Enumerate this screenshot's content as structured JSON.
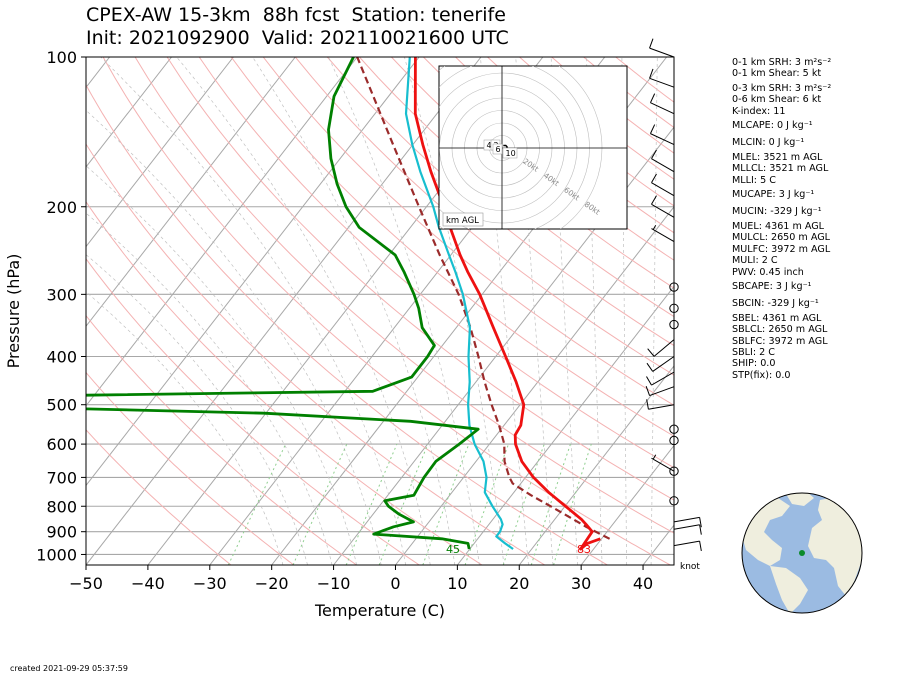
{
  "title_line1": "CPEX-AW 15-3km  88h fcst  Station: tenerife",
  "title_line2": "Init: 2021092900  Valid: 202110021600 UTC",
  "footer": "created 2021-09-29 05:37:59",
  "stats": [
    "0-1 km SRH: 3 m²s⁻²",
    "0-1 km Shear: 5 kt",
    "0-3 km SRH: 3 m²s⁻²",
    "0-6 km Shear: 6 kt",
    "K-index: 11",
    "MLCAPE: 0 J kg⁻¹",
    "MLCIN: 0 J kg⁻¹",
    "MLEL: 3521 m AGL",
    "MLLCL: 3521 m AGL",
    "MLLI: 5 C",
    "MUCAPE: 3 J kg⁻¹",
    "MUCIN: -329 J kg⁻¹",
    "MUEL: 4361 m AGL",
    "MULCL: 2650 m AGL",
    "MULFC: 3972 m AGL",
    "MULI: 2 C",
    "PWV: 0.45 inch",
    "SBCAPE: 3 J kg⁻¹",
    "SBCIN: -329 J kg⁻¹",
    "SBEL: 4361 m AGL",
    "SBLCL: 2650 m AGL",
    "SBLFC: 3972 m AGL",
    "SBLI: 2 C",
    "SHIP: 0.0",
    "STP(fix): 0.0"
  ],
  "hodograph": {
    "ring_labels": [
      "20kt",
      "40kt",
      "60kt",
      "80kt"
    ],
    "height_labels": [
      "4",
      "2",
      "6",
      "10"
    ],
    "units_label": "km AGL"
  },
  "barb_units": "knot",
  "colors": {
    "temperature": "#ee1111",
    "dewpoint": "#008000",
    "wetbulb": "#17becf",
    "parcel": "#9b2b2b",
    "isotherm": "#a8a8a8",
    "isobar": "#a8a8a8",
    "dry_adiabat": "#f4b2b2",
    "moist_adiabat": "#c0c0c0",
    "mixing_ratio": "#8fcf8f",
    "globe_ocean": "#9bbbe2",
    "globe_land": "#efeede",
    "station_marker": "#0a8a2a"
  },
  "chart_data": {
    "type": "skew-t",
    "xlabel": "Temperature (C)",
    "ylabel": "Pressure (hPa)",
    "xlim": [
      -50,
      45
    ],
    "ylim": [
      1050,
      100
    ],
    "y_log_scale": true,
    "xticks": [
      -50,
      -40,
      -30,
      -20,
      -10,
      0,
      10,
      20,
      30,
      40
    ],
    "yticks": [
      100,
      200,
      300,
      400,
      500,
      600,
      700,
      800,
      900,
      1000
    ],
    "surface_temperature_label": "83",
    "surface_dewpoint_label": "45",
    "temperature": [
      [
        930,
        29.8
      ],
      [
        950,
        28.3
      ],
      [
        975,
        27.9
      ],
      [
        900,
        27.6
      ],
      [
        870,
        25.7
      ],
      [
        850,
        24.3
      ],
      [
        800,
        20.1
      ],
      [
        750,
        15.6
      ],
      [
        700,
        11.3
      ],
      [
        650,
        7.4
      ],
      [
        600,
        4.2
      ],
      [
        575,
        3.0
      ],
      [
        550,
        2.7
      ],
      [
        500,
        0.6
      ],
      [
        450,
        -3.5
      ],
      [
        400,
        -8.4
      ],
      [
        350,
        -14.0
      ],
      [
        300,
        -20.4
      ],
      [
        270,
        -25.2
      ],
      [
        250,
        -28.5
      ],
      [
        220,
        -33.6
      ],
      [
        200,
        -37.2
      ],
      [
        170,
        -43.7
      ],
      [
        150,
        -48.4
      ],
      [
        130,
        -53.5
      ],
      [
        100,
        -60.6
      ]
    ],
    "dewpoint": [
      [
        975,
        9.9
      ],
      [
        950,
        9.0
      ],
      [
        930,
        4.2
      ],
      [
        910,
        -7.4
      ],
      [
        880,
        -5.1
      ],
      [
        860,
        -2.5
      ],
      [
        830,
        -5.8
      ],
      [
        800,
        -8.5
      ],
      [
        780,
        -9.8
      ],
      [
        760,
        -5.8
      ],
      [
        700,
        -6.4
      ],
      [
        650,
        -6.5
      ],
      [
        600,
        -4.9
      ],
      [
        560,
        -3.7
      ],
      [
        540,
        -15.6
      ],
      [
        520,
        -40.3
      ],
      [
        506,
        -80.0
      ],
      [
        480,
        -80.0
      ],
      [
        470,
        -25.5
      ],
      [
        440,
        -21.0
      ],
      [
        400,
        -21.0
      ],
      [
        380,
        -21.3
      ],
      [
        350,
        -25.5
      ],
      [
        320,
        -28.5
      ],
      [
        300,
        -31.0
      ],
      [
        270,
        -35.5
      ],
      [
        250,
        -39.0
      ],
      [
        220,
        -48.3
      ],
      [
        200,
        -53.0
      ],
      [
        180,
        -57.3
      ],
      [
        160,
        -61.5
      ],
      [
        140,
        -65.5
      ],
      [
        120,
        -68.8
      ],
      [
        100,
        -70.6
      ]
    ],
    "wetbulb": [
      [
        975,
        17.0
      ],
      [
        950,
        15.0
      ],
      [
        920,
        12.7
      ],
      [
        900,
        12.7
      ],
      [
        870,
        12.2
      ],
      [
        850,
        11.3
      ],
      [
        800,
        8.3
      ],
      [
        750,
        5.3
      ],
      [
        700,
        3.7
      ],
      [
        650,
        1.2
      ],
      [
        600,
        -2.4
      ],
      [
        550,
        -5.6
      ],
      [
        500,
        -8.4
      ],
      [
        450,
        -11.0
      ],
      [
        400,
        -14.4
      ],
      [
        350,
        -17.8
      ],
      [
        300,
        -23.1
      ],
      [
        270,
        -27.2
      ],
      [
        250,
        -30.3
      ],
      [
        220,
        -35.4
      ],
      [
        200,
        -38.9
      ],
      [
        170,
        -45.4
      ],
      [
        150,
        -50.1
      ],
      [
        130,
        -55.0
      ],
      [
        100,
        -61.5
      ]
    ],
    "parcel": [
      [
        930,
        31.3
      ],
      [
        880,
        26.0
      ],
      [
        850,
        23.0
      ],
      [
        800,
        17.7
      ],
      [
        760,
        13.1
      ],
      [
        720,
        8.7
      ],
      [
        700,
        7.4
      ],
      [
        650,
        4.6
      ],
      [
        600,
        2.4
      ],
      [
        550,
        -0.8
      ],
      [
        500,
        -4.6
      ],
      [
        450,
        -8.6
      ],
      [
        400,
        -12.8
      ],
      [
        350,
        -17.7
      ],
      [
        300,
        -23.8
      ],
      [
        250,
        -31.8
      ],
      [
        200,
        -41.2
      ],
      [
        150,
        -53.2
      ],
      [
        100,
        -70.0
      ]
    ],
    "wind_barbs": [
      {
        "p": 100,
        "dir": 290,
        "spd": 10
      },
      {
        "p": 115,
        "dir": 290,
        "spd": 10
      },
      {
        "p": 130,
        "dir": 295,
        "spd": 10
      },
      {
        "p": 150,
        "dir": 295,
        "spd": 10
      },
      {
        "p": 170,
        "dir": 300,
        "spd": 10
      },
      {
        "p": 190,
        "dir": 300,
        "spd": 10
      },
      {
        "p": 210,
        "dir": 300,
        "spd": 10
      },
      {
        "p": 235,
        "dir": 300,
        "spd": 5
      },
      {
        "p": 290,
        "dir": 0,
        "spd": 0
      },
      {
        "p": 320,
        "dir": 0,
        "spd": 0
      },
      {
        "p": 345,
        "dir": 0,
        "spd": 0
      },
      {
        "p": 370,
        "dir": 230,
        "spd": 10
      },
      {
        "p": 400,
        "dir": 235,
        "spd": 10
      },
      {
        "p": 430,
        "dir": 240,
        "spd": 10
      },
      {
        "p": 460,
        "dir": 250,
        "spd": 10
      },
      {
        "p": 500,
        "dir": 260,
        "spd": 10
      },
      {
        "p": 560,
        "dir": 0,
        "spd": 0
      },
      {
        "p": 590,
        "dir": 0,
        "spd": 0
      },
      {
        "p": 680,
        "dir": 0,
        "spd": 0
      },
      {
        "p": 680,
        "dir": 300,
        "spd": 5
      },
      {
        "p": 780,
        "dir": 0,
        "spd": 0
      },
      {
        "p": 860,
        "dir": 80,
        "spd": 10
      },
      {
        "p": 890,
        "dir": 80,
        "spd": 10
      },
      {
        "p": 960,
        "dir": 80,
        "spd": 10
      }
    ],
    "hodograph_trace": [
      [
        1,
        2
      ],
      [
        2,
        2
      ],
      [
        3,
        2
      ],
      [
        4,
        1
      ],
      [
        4,
        -2
      ],
      [
        5,
        -4
      ],
      [
        7,
        -5
      ],
      [
        9,
        -6
      ],
      [
        10,
        -5
      ]
    ]
  }
}
